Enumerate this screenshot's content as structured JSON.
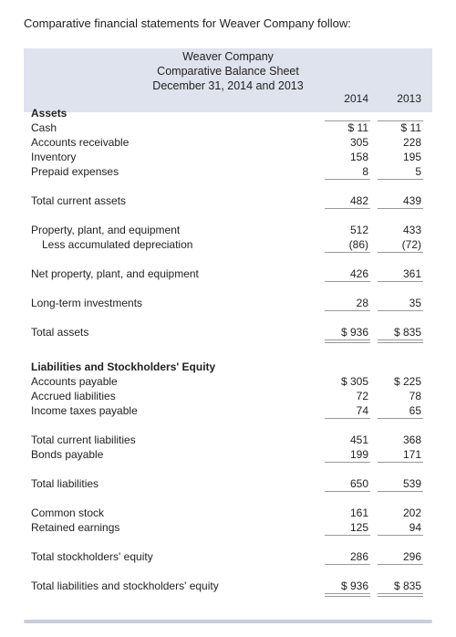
{
  "intro": "Comparative financial statements for Weaver Company follow:",
  "header": {
    "company": "Weaver Company",
    "statement": "Comparative Balance Sheet",
    "date": "December 31, 2014 and 2013",
    "col1": "2014",
    "col2": "2013"
  },
  "rows": [
    {
      "label": "Assets",
      "v1": "",
      "v2": ""
    },
    {
      "label": "Cash",
      "v1": "$   11",
      "v2": "$   11"
    },
    {
      "label": "Accounts receivable",
      "v1": "305",
      "v2": "228"
    },
    {
      "label": "Inventory",
      "v1": "158",
      "v2": "195"
    },
    {
      "label": "Prepaid expenses",
      "v1": "8",
      "v2": "5"
    },
    {
      "label": "Total current assets",
      "v1": "482",
      "v2": "439"
    },
    {
      "label": "Property, plant, and equipment",
      "v1": "512",
      "v2": "433"
    },
    {
      "label": "Less accumulated depreciation",
      "v1": "(86)",
      "v2": "(72)"
    },
    {
      "label": "Net property, plant, and equipment",
      "v1": "426",
      "v2": "361"
    },
    {
      "label": "Long-term investments",
      "v1": "28",
      "v2": "35"
    },
    {
      "label": "Total assets",
      "v1": "$ 936",
      "v2": "$ 835"
    },
    {
      "label": "Liabilities and Stockholders' Equity",
      "v1": "",
      "v2": ""
    },
    {
      "label": "Accounts payable",
      "v1": "$ 305",
      "v2": "$ 225"
    },
    {
      "label": "Accrued liabilities",
      "v1": "72",
      "v2": "78"
    },
    {
      "label": "Income taxes payable",
      "v1": "74",
      "v2": "65"
    },
    {
      "label": "Total current liabilities",
      "v1": "451",
      "v2": "368"
    },
    {
      "label": "Bonds payable",
      "v1": "199",
      "v2": "171"
    },
    {
      "label": "Total liabilities",
      "v1": "650",
      "v2": "539"
    },
    {
      "label": "Common stock",
      "v1": "161",
      "v2": "202"
    },
    {
      "label": "Retained earnings",
      "v1": "125",
      "v2": "94"
    },
    {
      "label": "Total stockholders' equity",
      "v1": "286",
      "v2": "296"
    },
    {
      "label": "Total liabilities and stockholders' equity",
      "v1": "$ 936",
      "v2": "$ 835"
    }
  ]
}
